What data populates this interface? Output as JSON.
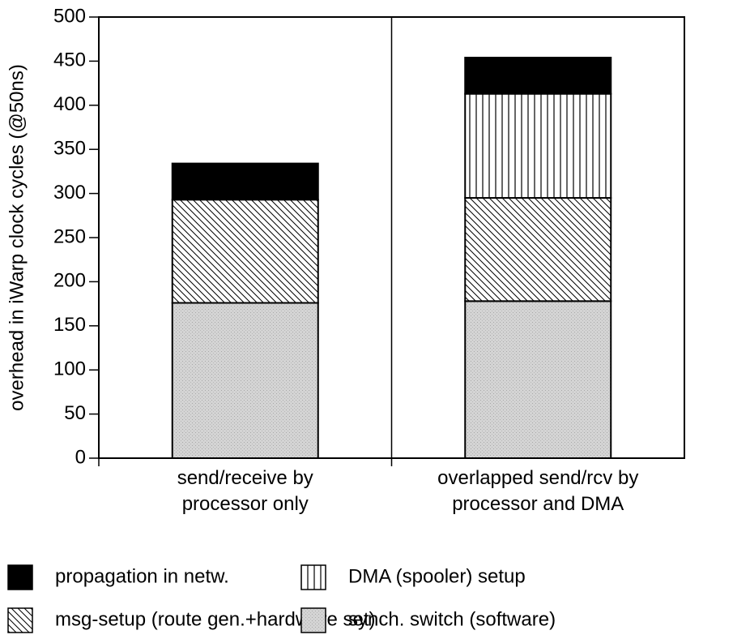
{
  "chart_data": {
    "type": "stacked_bar",
    "ylabel": "overhead in iWarp clock cycles (@50ns)",
    "categories": [
      "send/receive by\nprocessor only",
      "overlapped send/rcv by\nprocessor and DMA"
    ],
    "series": [
      {
        "name": "synch. switch (software)",
        "color": "#cfcfcf",
        "pattern": "dots",
        "values": [
          176,
          178
        ]
      },
      {
        "name": "msg-setup (route gen.+hardware set)",
        "color": "#000000",
        "pattern": "diagonal",
        "values": [
          117,
          117
        ]
      },
      {
        "name": "DMA (spooler) setup",
        "color": "#000000",
        "pattern": "vertical",
        "values": [
          0,
          118
        ]
      },
      {
        "name": "propagation in netw.",
        "color": "#000000",
        "pattern": "solid",
        "values": [
          41,
          41
        ]
      }
    ],
    "ylim": [
      0,
      500
    ],
    "yticks": [
      0,
      50,
      100,
      150,
      200,
      250,
      300,
      350,
      400,
      450,
      500
    ]
  }
}
